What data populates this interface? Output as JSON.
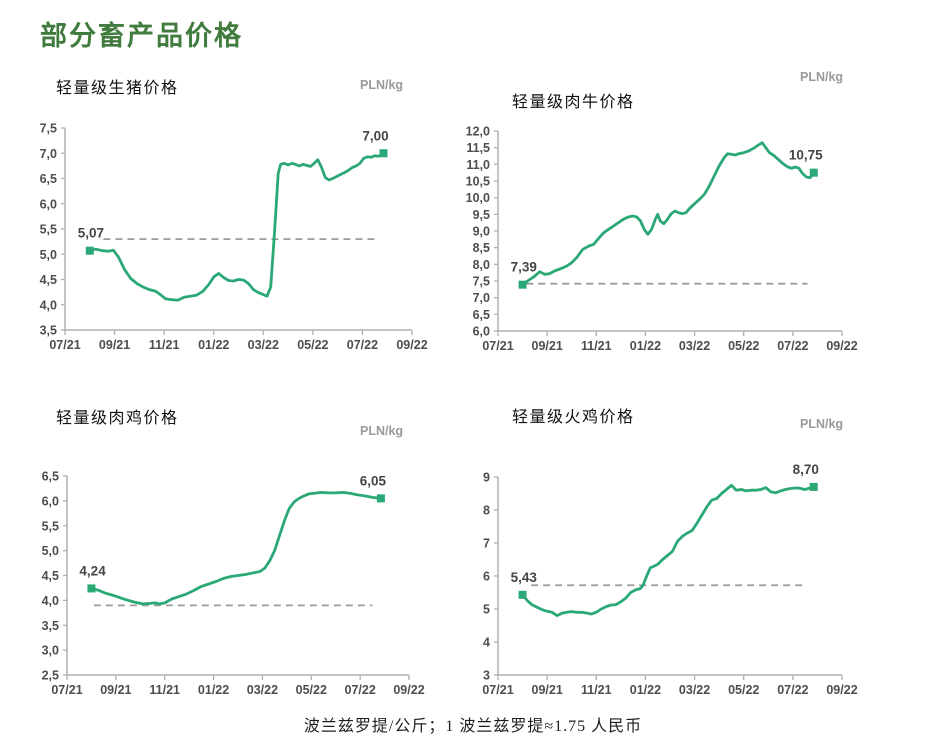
{
  "page": {
    "title": "部分畜产品价格",
    "caption": "波兰兹罗提/公斤；1 波兰兹罗提≈1.75 人民币"
  },
  "colors": {
    "line_green": "#2aa876",
    "title_green": "#417c3e",
    "axis_gray": "#b0b0b0",
    "tick_label_gray": "#4d4d4d",
    "data_label_gray": "#454545",
    "dashed_gray": "#9b9b9b",
    "unit_gray": "#9a9a9a"
  },
  "chart_data": [
    {
      "type": "line",
      "title": "轻量级生猪价格",
      "unit": "PLN/kg",
      "ylim": [
        3.5,
        7.5
      ],
      "y_step": 0.5,
      "y_decimals": 1,
      "xlim": [
        0,
        14
      ],
      "x_tick_labels": [
        "07/21",
        "09/21",
        "11/21",
        "01/22",
        "03/22",
        "05/22",
        "07/22",
        "09/22"
      ],
      "grid": false,
      "legend": "none",
      "ref_value": 5.3,
      "ref_x": [
        1.55,
        12.6
      ],
      "start_label": "5,07",
      "end_label": "7,00",
      "series": [
        {
          "name": "轻量级生猪价格",
          "points": [
            [
              1.0,
              5.07
            ],
            [
              1.25,
              5.1
            ],
            [
              1.5,
              5.07
            ],
            [
              1.75,
              5.06
            ],
            [
              1.95,
              5.08
            ],
            [
              2.15,
              4.95
            ],
            [
              2.4,
              4.7
            ],
            [
              2.65,
              4.52
            ],
            [
              2.9,
              4.42
            ],
            [
              3.15,
              4.35
            ],
            [
              3.4,
              4.3
            ],
            [
              3.65,
              4.27
            ],
            [
              3.85,
              4.2
            ],
            [
              4.05,
              4.12
            ],
            [
              4.3,
              4.1
            ],
            [
              4.55,
              4.09
            ],
            [
              4.8,
              4.15
            ],
            [
              5.05,
              4.17
            ],
            [
              5.3,
              4.19
            ],
            [
              5.55,
              4.26
            ],
            [
              5.8,
              4.4
            ],
            [
              6.0,
              4.55
            ],
            [
              6.2,
              4.62
            ],
            [
              6.4,
              4.54
            ],
            [
              6.6,
              4.48
            ],
            [
              6.8,
              4.47
            ],
            [
              7.0,
              4.5
            ],
            [
              7.2,
              4.49
            ],
            [
              7.4,
              4.42
            ],
            [
              7.6,
              4.3
            ],
            [
              7.8,
              4.24
            ],
            [
              8.0,
              4.2
            ],
            [
              8.15,
              4.17
            ],
            [
              8.3,
              4.35
            ],
            [
              8.45,
              5.4
            ],
            [
              8.6,
              6.6
            ],
            [
              8.7,
              6.78
            ],
            [
              8.85,
              6.8
            ],
            [
              9.0,
              6.77
            ],
            [
              9.15,
              6.8
            ],
            [
              9.3,
              6.78
            ],
            [
              9.45,
              6.75
            ],
            [
              9.6,
              6.78
            ],
            [
              9.75,
              6.76
            ],
            [
              9.9,
              6.74
            ],
            [
              10.05,
              6.8
            ],
            [
              10.2,
              6.87
            ],
            [
              10.35,
              6.72
            ],
            [
              10.5,
              6.52
            ],
            [
              10.65,
              6.47
            ],
            [
              10.8,
              6.5
            ],
            [
              11.0,
              6.55
            ],
            [
              11.2,
              6.6
            ],
            [
              11.4,
              6.65
            ],
            [
              11.6,
              6.72
            ],
            [
              11.75,
              6.75
            ],
            [
              11.9,
              6.8
            ],
            [
              12.05,
              6.9
            ],
            [
              12.2,
              6.93
            ],
            [
              12.35,
              6.92
            ],
            [
              12.5,
              6.95
            ],
            [
              12.65,
              6.94
            ],
            [
              12.85,
              7.0
            ]
          ]
        }
      ]
    },
    {
      "type": "line",
      "title": "轻量级肉牛价格",
      "unit": "PLN/kg",
      "ylim": [
        6.0,
        12.0
      ],
      "y_step": 0.5,
      "y_decimals": 1,
      "xlim": [
        0,
        14
      ],
      "x_tick_labels": [
        "07/21",
        "09/21",
        "11/21",
        "01/22",
        "03/22",
        "05/22",
        "07/22",
        "09/22"
      ],
      "grid": false,
      "legend": "none",
      "ref_value": 7.42,
      "ref_x": [
        1.15,
        12.6
      ],
      "start_label": "7,39",
      "end_label": "10,75",
      "series": [
        {
          "name": "轻量级肉牛价格",
          "points": [
            [
              1.0,
              7.39
            ],
            [
              1.2,
              7.5
            ],
            [
              1.45,
              7.62
            ],
            [
              1.7,
              7.78
            ],
            [
              1.9,
              7.7
            ],
            [
              2.1,
              7.72
            ],
            [
              2.3,
              7.8
            ],
            [
              2.55,
              7.87
            ],
            [
              2.8,
              7.95
            ],
            [
              3.0,
              8.05
            ],
            [
              3.2,
              8.2
            ],
            [
              3.45,
              8.45
            ],
            [
              3.7,
              8.55
            ],
            [
              3.9,
              8.6
            ],
            [
              4.1,
              8.78
            ],
            [
              4.3,
              8.95
            ],
            [
              4.5,
              9.05
            ],
            [
              4.7,
              9.15
            ],
            [
              4.9,
              9.25
            ],
            [
              5.1,
              9.35
            ],
            [
              5.3,
              9.42
            ],
            [
              5.5,
              9.45
            ],
            [
              5.65,
              9.42
            ],
            [
              5.8,
              9.3
            ],
            [
              5.95,
              9.05
            ],
            [
              6.1,
              8.9
            ],
            [
              6.25,
              9.05
            ],
            [
              6.4,
              9.35
            ],
            [
              6.5,
              9.5
            ],
            [
              6.6,
              9.3
            ],
            [
              6.75,
              9.22
            ],
            [
              6.9,
              9.35
            ],
            [
              7.05,
              9.52
            ],
            [
              7.2,
              9.6
            ],
            [
              7.35,
              9.55
            ],
            [
              7.5,
              9.52
            ],
            [
              7.65,
              9.55
            ],
            [
              7.8,
              9.68
            ],
            [
              8.0,
              9.82
            ],
            [
              8.2,
              9.95
            ],
            [
              8.4,
              10.1
            ],
            [
              8.6,
              10.35
            ],
            [
              8.8,
              10.65
            ],
            [
              9.0,
              10.95
            ],
            [
              9.2,
              11.2
            ],
            [
              9.35,
              11.32
            ],
            [
              9.5,
              11.3
            ],
            [
              9.65,
              11.28
            ],
            [
              9.8,
              11.32
            ],
            [
              10.0,
              11.35
            ],
            [
              10.2,
              11.4
            ],
            [
              10.4,
              11.48
            ],
            [
              10.6,
              11.58
            ],
            [
              10.75,
              11.65
            ],
            [
              10.9,
              11.5
            ],
            [
              11.05,
              11.35
            ],
            [
              11.2,
              11.28
            ],
            [
              11.4,
              11.15
            ],
            [
              11.6,
              11.02
            ],
            [
              11.8,
              10.92
            ],
            [
              11.95,
              10.88
            ],
            [
              12.1,
              10.92
            ],
            [
              12.25,
              10.88
            ],
            [
              12.4,
              10.72
            ],
            [
              12.55,
              10.62
            ],
            [
              12.7,
              10.6
            ],
            [
              12.85,
              10.75
            ]
          ]
        }
      ]
    },
    {
      "type": "line",
      "title": "轻量级肉鸡价格",
      "unit": "PLN/kg",
      "ylim": [
        2.5,
        6.5
      ],
      "y_step": 0.5,
      "y_decimals": 1,
      "xlim": [
        0,
        14
      ],
      "x_tick_labels": [
        "07/21",
        "09/21",
        "11/21",
        "01/22",
        "03/22",
        "05/22",
        "07/22",
        "09/22"
      ],
      "grid": false,
      "legend": "none",
      "ref_value": 3.9,
      "ref_x": [
        1.1,
        12.5
      ],
      "start_label": "4,24",
      "end_label": "6,05",
      "series": [
        {
          "name": "轻量级肉鸡价格",
          "points": [
            [
              1.0,
              4.24
            ],
            [
              1.3,
              4.2
            ],
            [
              1.6,
              4.14
            ],
            [
              1.9,
              4.1
            ],
            [
              2.2,
              4.05
            ],
            [
              2.5,
              4.0
            ],
            [
              2.8,
              3.96
            ],
            [
              3.1,
              3.93
            ],
            [
              3.4,
              3.94
            ],
            [
              3.6,
              3.95
            ],
            [
              3.8,
              3.93
            ],
            [
              4.0,
              3.95
            ],
            [
              4.3,
              4.03
            ],
            [
              4.6,
              4.08
            ],
            [
              4.9,
              4.13
            ],
            [
              5.2,
              4.2
            ],
            [
              5.5,
              4.28
            ],
            [
              5.8,
              4.33
            ],
            [
              6.1,
              4.38
            ],
            [
              6.4,
              4.44
            ],
            [
              6.7,
              4.48
            ],
            [
              7.0,
              4.5
            ],
            [
              7.3,
              4.52
            ],
            [
              7.6,
              4.55
            ],
            [
              7.9,
              4.58
            ],
            [
              8.1,
              4.65
            ],
            [
              8.3,
              4.8
            ],
            [
              8.5,
              5.0
            ],
            [
              8.7,
              5.3
            ],
            [
              8.9,
              5.6
            ],
            [
              9.1,
              5.85
            ],
            [
              9.3,
              5.98
            ],
            [
              9.5,
              6.05
            ],
            [
              9.7,
              6.1
            ],
            [
              9.9,
              6.14
            ],
            [
              10.1,
              6.15
            ],
            [
              10.4,
              6.17
            ],
            [
              10.7,
              6.16
            ],
            [
              11.0,
              6.16
            ],
            [
              11.3,
              6.17
            ],
            [
              11.6,
              6.15
            ],
            [
              11.9,
              6.12
            ],
            [
              12.2,
              6.1
            ],
            [
              12.5,
              6.07
            ],
            [
              12.85,
              6.05
            ]
          ]
        }
      ]
    },
    {
      "type": "line",
      "title": "轻量级火鸡价格",
      "unit": "PLN/kg",
      "ylim": [
        3,
        9
      ],
      "y_step": 1,
      "y_decimals": 0,
      "xlim": [
        0,
        14
      ],
      "x_tick_labels": [
        "07/21",
        "09/21",
        "11/21",
        "01/22",
        "03/22",
        "05/22",
        "07/22",
        "09/22"
      ],
      "grid": false,
      "legend": "none",
      "ref_value": 5.72,
      "ref_x": [
        1.35,
        12.55
      ],
      "start_label": "5,43",
      "end_label": "8,70",
      "series": [
        {
          "name": "轻量级火鸡价格",
          "points": [
            [
              1.0,
              5.43
            ],
            [
              1.2,
              5.25
            ],
            [
              1.4,
              5.12
            ],
            [
              1.6,
              5.05
            ],
            [
              1.8,
              4.98
            ],
            [
              2.0,
              4.93
            ],
            [
              2.2,
              4.9
            ],
            [
              2.4,
              4.8
            ],
            [
              2.6,
              4.87
            ],
            [
              2.8,
              4.9
            ],
            [
              3.0,
              4.92
            ],
            [
              3.2,
              4.9
            ],
            [
              3.4,
              4.9
            ],
            [
              3.6,
              4.88
            ],
            [
              3.8,
              4.85
            ],
            [
              4.0,
              4.9
            ],
            [
              4.2,
              5.0
            ],
            [
              4.4,
              5.07
            ],
            [
              4.6,
              5.12
            ],
            [
              4.8,
              5.13
            ],
            [
              5.0,
              5.22
            ],
            [
              5.2,
              5.33
            ],
            [
              5.4,
              5.5
            ],
            [
              5.6,
              5.58
            ],
            [
              5.8,
              5.62
            ],
            [
              5.9,
              5.72
            ],
            [
              6.05,
              6.0
            ],
            [
              6.2,
              6.25
            ],
            [
              6.35,
              6.3
            ],
            [
              6.5,
              6.35
            ],
            [
              6.7,
              6.5
            ],
            [
              6.9,
              6.62
            ],
            [
              7.1,
              6.75
            ],
            [
              7.3,
              7.05
            ],
            [
              7.5,
              7.2
            ],
            [
              7.7,
              7.3
            ],
            [
              7.9,
              7.38
            ],
            [
              8.1,
              7.6
            ],
            [
              8.3,
              7.85
            ],
            [
              8.5,
              8.1
            ],
            [
              8.7,
              8.3
            ],
            [
              8.9,
              8.35
            ],
            [
              9.1,
              8.5
            ],
            [
              9.3,
              8.62
            ],
            [
              9.5,
              8.75
            ],
            [
              9.7,
              8.6
            ],
            [
              9.9,
              8.62
            ],
            [
              10.1,
              8.58
            ],
            [
              10.3,
              8.6
            ],
            [
              10.5,
              8.6
            ],
            [
              10.7,
              8.62
            ],
            [
              10.9,
              8.68
            ],
            [
              11.1,
              8.55
            ],
            [
              11.3,
              8.52
            ],
            [
              11.5,
              8.58
            ],
            [
              11.7,
              8.62
            ],
            [
              11.9,
              8.65
            ],
            [
              12.2,
              8.67
            ],
            [
              12.5,
              8.62
            ],
            [
              12.85,
              8.7
            ]
          ]
        }
      ]
    }
  ]
}
